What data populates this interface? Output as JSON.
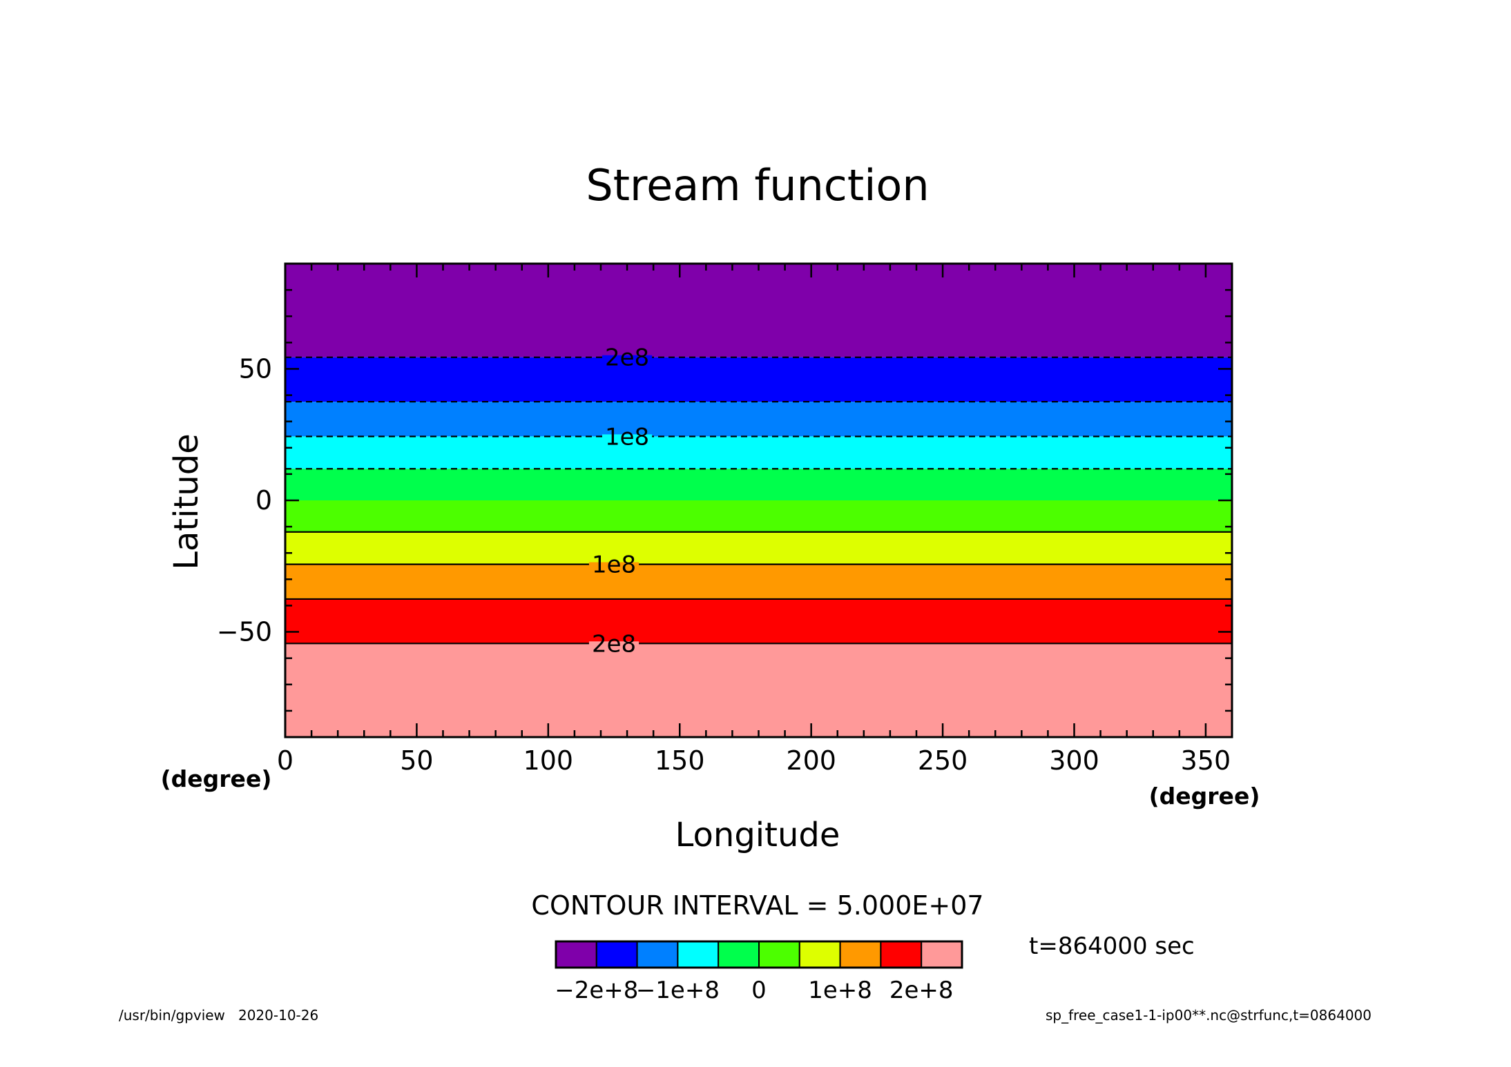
{
  "chart_data": {
    "type": "heatmap",
    "title": "Stream function",
    "xlabel": "Longitude",
    "ylabel": "Latitude",
    "x_unit": "(degree)",
    "y_unit": "(degree)",
    "xlim": [
      0,
      360
    ],
    "ylim": [
      -90,
      90
    ],
    "x_ticks": [
      0,
      50,
      100,
      150,
      200,
      250,
      300,
      350
    ],
    "y_ticks": [
      -50,
      0,
      50
    ],
    "contour_interval_text": "CONTOUR INTERVAL = 5.000E+07",
    "time_text": "t=864000 sec",
    "footer_left": "/usr/bin/gpview   2020-10-26",
    "footer_right": "sp_free_case1-1-ip00**.nc@strfunc,t=0864000",
    "levels": [
      -250000000.0,
      -200000000.0,
      -150000000.0,
      -100000000.0,
      -50000000.0,
      0,
      50000000.0,
      100000000.0,
      150000000.0,
      200000000.0,
      250000000.0
    ],
    "colors": [
      "#7f00aa",
      "#0000ff",
      "#0080ff",
      "#00ffff",
      "#00ff4c",
      "#4cff00",
      "#ddff00",
      "#ff9900",
      "#ff0000",
      "#ff9999"
    ],
    "bands": [
      {
        "lat_from": 54.4,
        "lat_to": 90,
        "color": "#7f00aa"
      },
      {
        "lat_from": 37.5,
        "lat_to": 54.4,
        "color": "#0000ff"
      },
      {
        "lat_from": 24.3,
        "lat_to": 37.5,
        "color": "#0080ff"
      },
      {
        "lat_from": 12,
        "lat_to": 24.3,
        "color": "#00ffff"
      },
      {
        "lat_from": 0,
        "lat_to": 12,
        "color": "#00ff4c"
      },
      {
        "lat_from": -12,
        "lat_to": 0,
        "color": "#4cff00"
      },
      {
        "lat_from": -24.3,
        "lat_to": -12,
        "color": "#ddff00"
      },
      {
        "lat_from": -37.5,
        "lat_to": -24.3,
        "color": "#ff9900"
      },
      {
        "lat_from": -54.4,
        "lat_to": -37.5,
        "color": "#ff0000"
      },
      {
        "lat_from": -90,
        "lat_to": -54.4,
        "color": "#ff9999"
      }
    ],
    "contours": [
      {
        "lat": 54.4,
        "style": "dashed",
        "label": "2e8",
        "label_lon": 130
      },
      {
        "lat": 37.5,
        "style": "dashed",
        "label": "",
        "label_lon": 0
      },
      {
        "lat": 24.3,
        "style": "dashed",
        "label": "1e8",
        "label_lon": 130
      },
      {
        "lat": 12,
        "style": "dashed",
        "label": "",
        "label_lon": 0
      },
      {
        "lat": -12,
        "style": "solid",
        "label": "",
        "label_lon": 0
      },
      {
        "lat": -24.3,
        "style": "solid",
        "label": "1e8",
        "label_lon": 125
      },
      {
        "lat": -37.5,
        "style": "solid",
        "label": "",
        "label_lon": 0
      },
      {
        "lat": -54.4,
        "style": "solid",
        "label": "2e8",
        "label_lon": 125
      }
    ],
    "colorbar_labels": [
      {
        "text": "-2e+8",
        "boundary": 1
      },
      {
        "text": "-1e+8",
        "boundary": 3
      },
      {
        "text": "0",
        "boundary": 5
      },
      {
        "text": "1e+8",
        "boundary": 7
      },
      {
        "text": "2e+8",
        "boundary": 9
      }
    ]
  }
}
